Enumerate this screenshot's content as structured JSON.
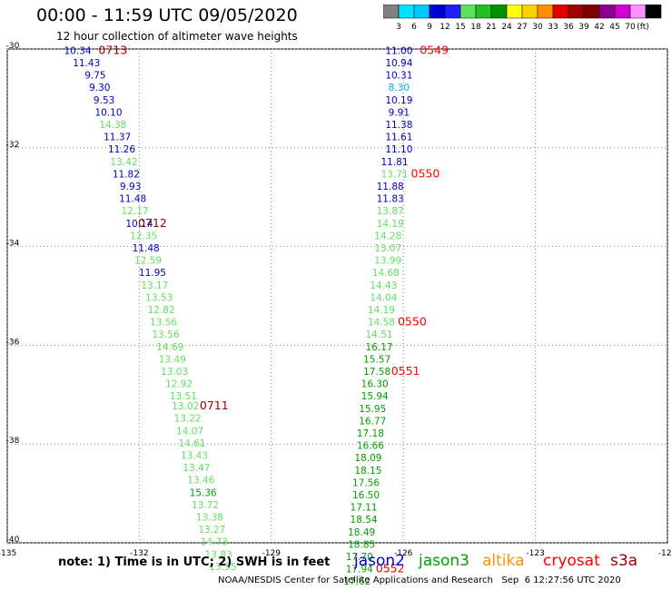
{
  "header": {
    "title": "00:00 - 11:59 UTC 09/05/2020",
    "subtitle": "12 hour collection of altimeter wave heights"
  },
  "colorbar": {
    "unit": "(ft)",
    "ticks": [
      "3",
      "6",
      "9",
      "12",
      "15",
      "18",
      "21",
      "24",
      "27",
      "30",
      "33",
      "36",
      "39",
      "42",
      "45",
      "70"
    ],
    "colors": [
      "#808080",
      "#00e0ff",
      "#00c8ff",
      "#0000d0",
      "#2020ff",
      "#60e060",
      "#20c020",
      "#009000",
      "#ffff00",
      "#ffd000",
      "#ff9000",
      "#e00000",
      "#a00000",
      "#800000",
      "#900090",
      "#d000d0",
      "#ff90ff",
      "#000000"
    ]
  },
  "axes": {
    "lat_labels": [
      "-30",
      "-32",
      "-34",
      "-36",
      "-38",
      "-40"
    ],
    "lon_labels": [
      "-135",
      "-132",
      "-129",
      "-126",
      "-123",
      "-120"
    ]
  },
  "colors": {
    "blue": "#0000c8",
    "lightgreen": "#60e060",
    "green": "#00a000",
    "cyan": "#00b0ff",
    "time_red": "#ff0000",
    "time_darkred": "#a00000",
    "grid": "#808080"
  },
  "tracks": [
    {
      "name": "west-track",
      "points": [
        {
          "lon": -133.4,
          "lat": -30.1,
          "v": "10.34",
          "c": "blue"
        },
        {
          "lon": -133.2,
          "lat": -30.35,
          "v": "11.43",
          "c": "blue"
        },
        {
          "lon": -133.0,
          "lat": -30.6,
          "v": "9.75",
          "c": "blue"
        },
        {
          "lon": -132.9,
          "lat": -30.85,
          "v": "9.30",
          "c": "blue"
        },
        {
          "lon": -132.8,
          "lat": -31.1,
          "v": "9.53",
          "c": "blue"
        },
        {
          "lon": -132.7,
          "lat": -31.35,
          "v": "10.10",
          "c": "blue"
        },
        {
          "lon": -132.6,
          "lat": -31.6,
          "v": "14.38",
          "c": "lightgreen"
        },
        {
          "lon": -132.5,
          "lat": -31.85,
          "v": "11.37",
          "c": "blue"
        },
        {
          "lon": -132.4,
          "lat": -32.1,
          "v": "11.26",
          "c": "blue"
        },
        {
          "lon": -132.35,
          "lat": -32.35,
          "v": "13.42",
          "c": "lightgreen"
        },
        {
          "lon": -132.3,
          "lat": -32.6,
          "v": "11.82",
          "c": "blue"
        },
        {
          "lon": -132.2,
          "lat": -32.85,
          "v": "9.93",
          "c": "blue"
        },
        {
          "lon": -132.15,
          "lat": -33.1,
          "v": "11.48",
          "c": "blue"
        },
        {
          "lon": -132.1,
          "lat": -33.35,
          "v": "12.17",
          "c": "lightgreen"
        },
        {
          "lon": -132.0,
          "lat": -33.6,
          "v": "10.14",
          "c": "blue"
        },
        {
          "lon": -131.9,
          "lat": -33.85,
          "v": "12.35",
          "c": "lightgreen"
        },
        {
          "lon": -131.85,
          "lat": -34.1,
          "v": "11.48",
          "c": "blue"
        },
        {
          "lon": -131.8,
          "lat": -34.35,
          "v": "12.59",
          "c": "lightgreen"
        },
        {
          "lon": -131.7,
          "lat": -34.6,
          "v": "11.95",
          "c": "blue"
        },
        {
          "lon": -131.65,
          "lat": -34.85,
          "v": "13.17",
          "c": "lightgreen"
        },
        {
          "lon": -131.55,
          "lat": -35.1,
          "v": "13.53",
          "c": "lightgreen"
        },
        {
          "lon": -131.5,
          "lat": -35.35,
          "v": "12.82",
          "c": "lightgreen"
        },
        {
          "lon": -131.45,
          "lat": -35.6,
          "v": "13.56",
          "c": "lightgreen"
        },
        {
          "lon": -131.4,
          "lat": -35.85,
          "v": "13.56",
          "c": "lightgreen"
        },
        {
          "lon": -131.3,
          "lat": -36.1,
          "v": "14.69",
          "c": "lightgreen"
        },
        {
          "lon": -131.25,
          "lat": -36.35,
          "v": "13.49",
          "c": "lightgreen"
        },
        {
          "lon": -131.2,
          "lat": -36.6,
          "v": "13.03",
          "c": "lightgreen"
        },
        {
          "lon": -131.1,
          "lat": -36.85,
          "v": "12.92",
          "c": "lightgreen"
        },
        {
          "lon": -131.0,
          "lat": -37.1,
          "v": "13.51",
          "c": "lightgreen"
        },
        {
          "lon": -130.95,
          "lat": -37.3,
          "v": "13.02",
          "c": "lightgreen"
        },
        {
          "lon": -130.9,
          "lat": -37.55,
          "v": "13.22",
          "c": "lightgreen"
        },
        {
          "lon": -130.85,
          "lat": -37.8,
          "v": "14.07",
          "c": "lightgreen"
        },
        {
          "lon": -130.8,
          "lat": -38.05,
          "v": "14.61",
          "c": "lightgreen"
        },
        {
          "lon": -130.75,
          "lat": -38.3,
          "v": "13.43",
          "c": "lightgreen"
        },
        {
          "lon": -130.7,
          "lat": -38.55,
          "v": "13.47",
          "c": "lightgreen"
        },
        {
          "lon": -130.6,
          "lat": -38.8,
          "v": "13.46",
          "c": "lightgreen"
        },
        {
          "lon": -130.55,
          "lat": -39.05,
          "v": "15.36",
          "c": "green"
        },
        {
          "lon": -130.5,
          "lat": -39.3,
          "v": "13.72",
          "c": "lightgreen"
        },
        {
          "lon": -130.4,
          "lat": -39.55,
          "v": "13.38",
          "c": "lightgreen"
        },
        {
          "lon": -130.35,
          "lat": -39.8,
          "v": "13.27",
          "c": "lightgreen"
        },
        {
          "lon": -130.3,
          "lat": -40.05,
          "v": "14.73",
          "c": "lightgreen"
        },
        {
          "lon": -130.2,
          "lat": -40.3,
          "v": "13.83",
          "c": "lightgreen"
        },
        {
          "lon": -130.1,
          "lat": -40.55,
          "v": "13.55",
          "c": "lightgreen"
        }
      ],
      "times": [
        {
          "lon": -132.6,
          "lat": -30.1,
          "t": "0713",
          "c": "time_darkred"
        },
        {
          "lon": -131.7,
          "lat": -33.6,
          "t": "0712",
          "c": "time_darkred"
        },
        {
          "lon": -130.3,
          "lat": -37.3,
          "t": "0711",
          "c": "time_darkred"
        }
      ]
    },
    {
      "name": "east-track",
      "points": [
        {
          "lon": -126.1,
          "lat": -30.1,
          "v": "11.00",
          "c": "blue"
        },
        {
          "lon": -126.1,
          "lat": -30.35,
          "v": "10.94",
          "c": "blue"
        },
        {
          "lon": -126.1,
          "lat": -30.6,
          "v": "10.31",
          "c": "blue"
        },
        {
          "lon": -126.1,
          "lat": -30.85,
          "v": "8.30",
          "c": "cyan"
        },
        {
          "lon": -126.1,
          "lat": -31.1,
          "v": "10.19",
          "c": "blue"
        },
        {
          "lon": -126.1,
          "lat": -31.35,
          "v": "9.91",
          "c": "blue"
        },
        {
          "lon": -126.1,
          "lat": -31.6,
          "v": "11.38",
          "c": "blue"
        },
        {
          "lon": -126.1,
          "lat": -31.85,
          "v": "11.61",
          "c": "blue"
        },
        {
          "lon": -126.1,
          "lat": -32.1,
          "v": "11.10",
          "c": "blue"
        },
        {
          "lon": -126.2,
          "lat": -32.35,
          "v": "11.81",
          "c": "blue"
        },
        {
          "lon": -126.2,
          "lat": -32.6,
          "v": "13.71",
          "c": "lightgreen"
        },
        {
          "lon": -126.3,
          "lat": -32.85,
          "v": "11.88",
          "c": "blue"
        },
        {
          "lon": -126.3,
          "lat": -33.1,
          "v": "11.83",
          "c": "blue"
        },
        {
          "lon": -126.3,
          "lat": -33.35,
          "v": "13.87",
          "c": "lightgreen"
        },
        {
          "lon": -126.3,
          "lat": -33.6,
          "v": "14.19",
          "c": "lightgreen"
        },
        {
          "lon": -126.35,
          "lat": -33.85,
          "v": "14.28",
          "c": "lightgreen"
        },
        {
          "lon": -126.35,
          "lat": -34.1,
          "v": "13.07",
          "c": "lightgreen"
        },
        {
          "lon": -126.35,
          "lat": -34.35,
          "v": "13.99",
          "c": "lightgreen"
        },
        {
          "lon": -126.4,
          "lat": -34.6,
          "v": "14.68",
          "c": "lightgreen"
        },
        {
          "lon": -126.45,
          "lat": -34.85,
          "v": "14.43",
          "c": "lightgreen"
        },
        {
          "lon": -126.45,
          "lat": -35.1,
          "v": "14.04",
          "c": "lightgreen"
        },
        {
          "lon": -126.5,
          "lat": -35.35,
          "v": "14.19",
          "c": "lightgreen"
        },
        {
          "lon": -126.5,
          "lat": -35.6,
          "v": "14.58",
          "c": "lightgreen"
        },
        {
          "lon": -126.55,
          "lat": -35.85,
          "v": "14.51",
          "c": "lightgreen"
        },
        {
          "lon": -126.55,
          "lat": -36.1,
          "v": "16.17",
          "c": "green"
        },
        {
          "lon": -126.6,
          "lat": -36.35,
          "v": "15.57",
          "c": "green"
        },
        {
          "lon": -126.6,
          "lat": -36.6,
          "v": "17.58",
          "c": "green"
        },
        {
          "lon": -126.65,
          "lat": -36.85,
          "v": "16.30",
          "c": "green"
        },
        {
          "lon": -126.65,
          "lat": -37.1,
          "v": "15.94",
          "c": "green"
        },
        {
          "lon": -126.7,
          "lat": -37.35,
          "v": "15.95",
          "c": "green"
        },
        {
          "lon": -126.7,
          "lat": -37.6,
          "v": "16.77",
          "c": "green"
        },
        {
          "lon": -126.75,
          "lat": -37.85,
          "v": "17.18",
          "c": "green"
        },
        {
          "lon": -126.75,
          "lat": -38.1,
          "v": "16.66",
          "c": "green"
        },
        {
          "lon": -126.8,
          "lat": -38.35,
          "v": "18.09",
          "c": "green"
        },
        {
          "lon": -126.8,
          "lat": -38.6,
          "v": "18.15",
          "c": "green"
        },
        {
          "lon": -126.85,
          "lat": -38.85,
          "v": "17.56",
          "c": "green"
        },
        {
          "lon": -126.85,
          "lat": -39.1,
          "v": "16.50",
          "c": "green"
        },
        {
          "lon": -126.9,
          "lat": -39.35,
          "v": "17.11",
          "c": "green"
        },
        {
          "lon": -126.9,
          "lat": -39.6,
          "v": "18.54",
          "c": "green"
        },
        {
          "lon": -126.95,
          "lat": -39.85,
          "v": "18.49",
          "c": "green"
        },
        {
          "lon": -126.95,
          "lat": -40.1,
          "v": "18.85",
          "c": "green"
        },
        {
          "lon": -127.0,
          "lat": -40.35,
          "v": "17.70",
          "c": "green"
        },
        {
          "lon": -127.0,
          "lat": -40.6,
          "v": "17.94",
          "c": "green"
        },
        {
          "lon": -127.05,
          "lat": -40.85,
          "v": "17.62",
          "c": "green"
        }
      ],
      "times": [
        {
          "lon": -125.3,
          "lat": -30.1,
          "t": "0549",
          "c": "time_red"
        },
        {
          "lon": -125.5,
          "lat": -32.6,
          "t": "0550",
          "c": "time_red"
        },
        {
          "lon": -125.8,
          "lat": -35.6,
          "t": "0550",
          "c": "time_red"
        },
        {
          "lon": -125.95,
          "lat": -36.6,
          "t": "0551",
          "c": "time_red"
        },
        {
          "lon": -126.3,
          "lat": -40.6,
          "t": "0552",
          "c": "time_red"
        }
      ]
    }
  ],
  "footer": {
    "note": "note: 1) Time is in UTC; 2) SWH is in feet",
    "satellites": [
      {
        "name": "jason2",
        "color": "#0000c8"
      },
      {
        "name": "jason3",
        "color": "#00a000"
      },
      {
        "name": "altika",
        "color": "#ff9000"
      },
      {
        "name": "cryosat",
        "color": "#ff0000"
      },
      {
        "name": "s3a",
        "color": "#a00000"
      }
    ],
    "credit": "NOAA/NESDIS Center for Satellite Applications and Research   Sep  6 12:27:56 UTC 2020"
  }
}
